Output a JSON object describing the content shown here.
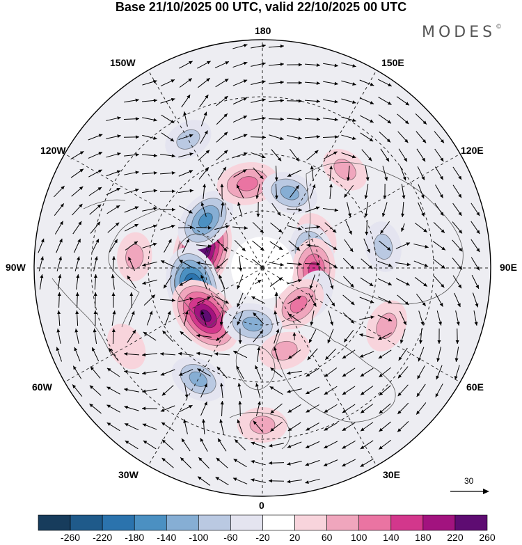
{
  "title": "Base 21/10/2025 00 UTC, valid 22/10/2025 00 UTC",
  "brand": "MODES",
  "brand_mark": "©",
  "longitude_labels": {
    "top": "180",
    "bottom": "0",
    "left": "90W",
    "right": "90E",
    "upper_left_1": "150W",
    "upper_left_2": "120W",
    "upper_right_1": "150E",
    "upper_right_2": "120E",
    "lower_left_1": "60W",
    "lower_left_2": "30W",
    "lower_right_1": "60E",
    "lower_right_2": "30E"
  },
  "reference_vector": "30",
  "colorbar": {
    "labels": [
      "-260",
      "-220",
      "-180",
      "-140",
      "-100",
      "-60",
      "-20",
      "20",
      "60",
      "100",
      "140",
      "180",
      "220",
      "260"
    ],
    "colors": [
      "#173c5c",
      "#1f5a8a",
      "#2b73ad",
      "#4b90c2",
      "#86aed4",
      "#bac9e2",
      "#e4e4f0",
      "#ffffff",
      "#f8d4dc",
      "#f0a6bd",
      "#ea74a2",
      "#d3378c",
      "#a2137f",
      "#5e0c72"
    ]
  },
  "anomalies": [
    {
      "lon": -107,
      "colat": 22,
      "value": 260
    },
    {
      "lon": -75,
      "colat": 25,
      "value": -230
    },
    {
      "lon": -50,
      "colat": 26,
      "value": 240
    },
    {
      "lon": -130,
      "colat": 26,
      "value": -150
    },
    {
      "lon": -170,
      "colat": 30,
      "value": 120
    },
    {
      "lon": 160,
      "colat": 28,
      "value": -90
    },
    {
      "lon": 120,
      "colat": 22,
      "value": 50
    },
    {
      "lon": 105,
      "colat": 18,
      "value": -130
    },
    {
      "lon": 88,
      "colat": 18,
      "value": 130
    },
    {
      "lon": 62,
      "colat": 20,
      "value": -60
    },
    {
      "lon": 45,
      "colat": 18,
      "value": 100
    },
    {
      "lon": -10,
      "colat": 20,
      "value": -110
    },
    {
      "lon": 15,
      "colat": 30,
      "value": 60
    },
    {
      "lon": 100,
      "colat": 43,
      "value": -55
    },
    {
      "lon": 65,
      "colat": 48,
      "value": 70
    },
    {
      "lon": -30,
      "colat": 45,
      "value": -90
    },
    {
      "lon": -95,
      "colat": 45,
      "value": 45
    },
    {
      "lon": 140,
      "colat": 45,
      "value": 45
    },
    {
      "lon": -150,
      "colat": 52,
      "value": -45
    },
    {
      "lon": -60,
      "colat": 55,
      "value": 40
    },
    {
      "lon": 0,
      "colat": 55,
      "value": 50
    }
  ]
}
